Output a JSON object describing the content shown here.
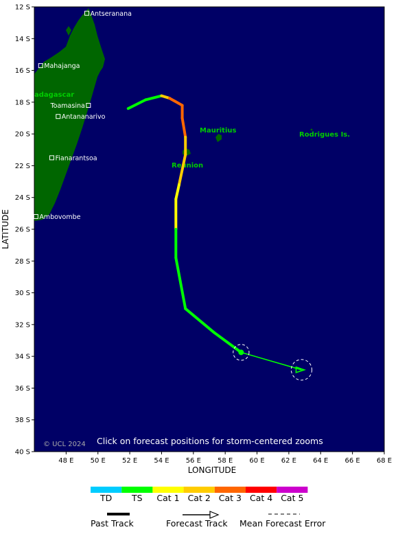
{
  "map": {
    "axes": {
      "y_title": "LATITUDE",
      "x_title": "LONGITUDE",
      "lat_ticks": [
        "12 S",
        "14 S",
        "16 S",
        "18 S",
        "20 S",
        "22 S",
        "24 S",
        "26 S",
        "28 S",
        "30 S",
        "32 S",
        "34 S",
        "36 S",
        "38 S",
        "40 S"
      ],
      "lon_ticks": [
        "48 E",
        "50 E",
        "52 E",
        "54 E",
        "56 E",
        "58 E",
        "60 E",
        "62 E",
        "64 E",
        "66 E",
        "68 E"
      ],
      "lat_range": [
        -40,
        -12
      ],
      "lon_range": [
        46.0,
        68.0
      ]
    },
    "colors": {
      "ocean": "#000066",
      "land": "#006600",
      "label_green": "#00cc00",
      "text_white": "#ffffff"
    },
    "places": [
      {
        "name": "Antseranana",
        "lat": -12.4,
        "lon": 49.3
      },
      {
        "name": "Mahajanga",
        "lat": -15.7,
        "lon": 46.4
      },
      {
        "name": "Toamasina",
        "lat": -18.2,
        "lon": 49.4
      },
      {
        "name": "Antananarivo",
        "lat": -18.9,
        "lon": 47.5
      },
      {
        "name": "Fianarantsoa",
        "lat": -21.5,
        "lon": 47.1
      },
      {
        "name": "Ambovombe",
        "lat": -25.2,
        "lon": 46.1
      }
    ],
    "islands": {
      "madagascar": "adagascar",
      "mauritius": "Mauritius",
      "reunion": "Reunion",
      "rodrigues": "Rodrigues Is."
    },
    "copyright": "© UCL 2024",
    "hint": "Click on forecast positions for storm-centered zooms"
  },
  "storm": {
    "past_track": [
      {
        "lon": 51.9,
        "lat": -18.4,
        "cat": "TS"
      },
      {
        "lon": 53.0,
        "lat": -17.85,
        "cat": "TS"
      },
      {
        "lon": 54.0,
        "lat": -17.6,
        "cat": "TS"
      },
      {
        "lon": 54.5,
        "lat": -17.75,
        "cat": "Cat 2"
      },
      {
        "lon": 55.3,
        "lat": -18.2,
        "cat": "Cat 3"
      },
      {
        "lon": 55.3,
        "lat": -19.0,
        "cat": "Cat 3"
      },
      {
        "lon": 55.5,
        "lat": -20.2,
        "cat": "Cat 3"
      },
      {
        "lon": 55.5,
        "lat": -21.3,
        "cat": "Cat 2"
      },
      {
        "lon": 55.1,
        "lat": -23.2,
        "cat": "Cat 2"
      },
      {
        "lon": 54.9,
        "lat": -24.1,
        "cat": "Cat 1"
      },
      {
        "lon": 54.9,
        "lat": -26.0,
        "cat": "Cat 1"
      },
      {
        "lon": 54.9,
        "lat": -27.8,
        "cat": "TS"
      },
      {
        "lon": 55.5,
        "lat": -31.0,
        "cat": "TS"
      },
      {
        "lon": 57.3,
        "lat": -32.5,
        "cat": "TS"
      },
      {
        "lon": 59.0,
        "lat": -33.75,
        "cat": "TS"
      }
    ],
    "forecast_track": [
      {
        "lon": 59.0,
        "lat": -33.75
      },
      {
        "lon": 62.8,
        "lat": -34.85
      }
    ],
    "forecast_points": [
      {
        "lon": 59.0,
        "lat": -33.75,
        "error_deg": 0.5,
        "marker": "dot"
      },
      {
        "lon": 62.8,
        "lat": -34.85,
        "error_deg": 0.65,
        "marker": "triangle"
      }
    ]
  },
  "legend": {
    "categories": [
      {
        "label": "TD",
        "color": "#00ccff"
      },
      {
        "label": "TS",
        "color": "#00ff00"
      },
      {
        "label": "Cat 1",
        "color": "#ffff00"
      },
      {
        "label": "Cat 2",
        "color": "#ffcc00"
      },
      {
        "label": "Cat 3",
        "color": "#ff6600"
      },
      {
        "label": "Cat 4",
        "color": "#ff0000"
      },
      {
        "label": "Cat 5",
        "color": "#cc00cc"
      }
    ],
    "past_track_label": "Past Track",
    "forecast_track_label": "Forecast Track",
    "error_label": "Mean Forecast Error"
  }
}
